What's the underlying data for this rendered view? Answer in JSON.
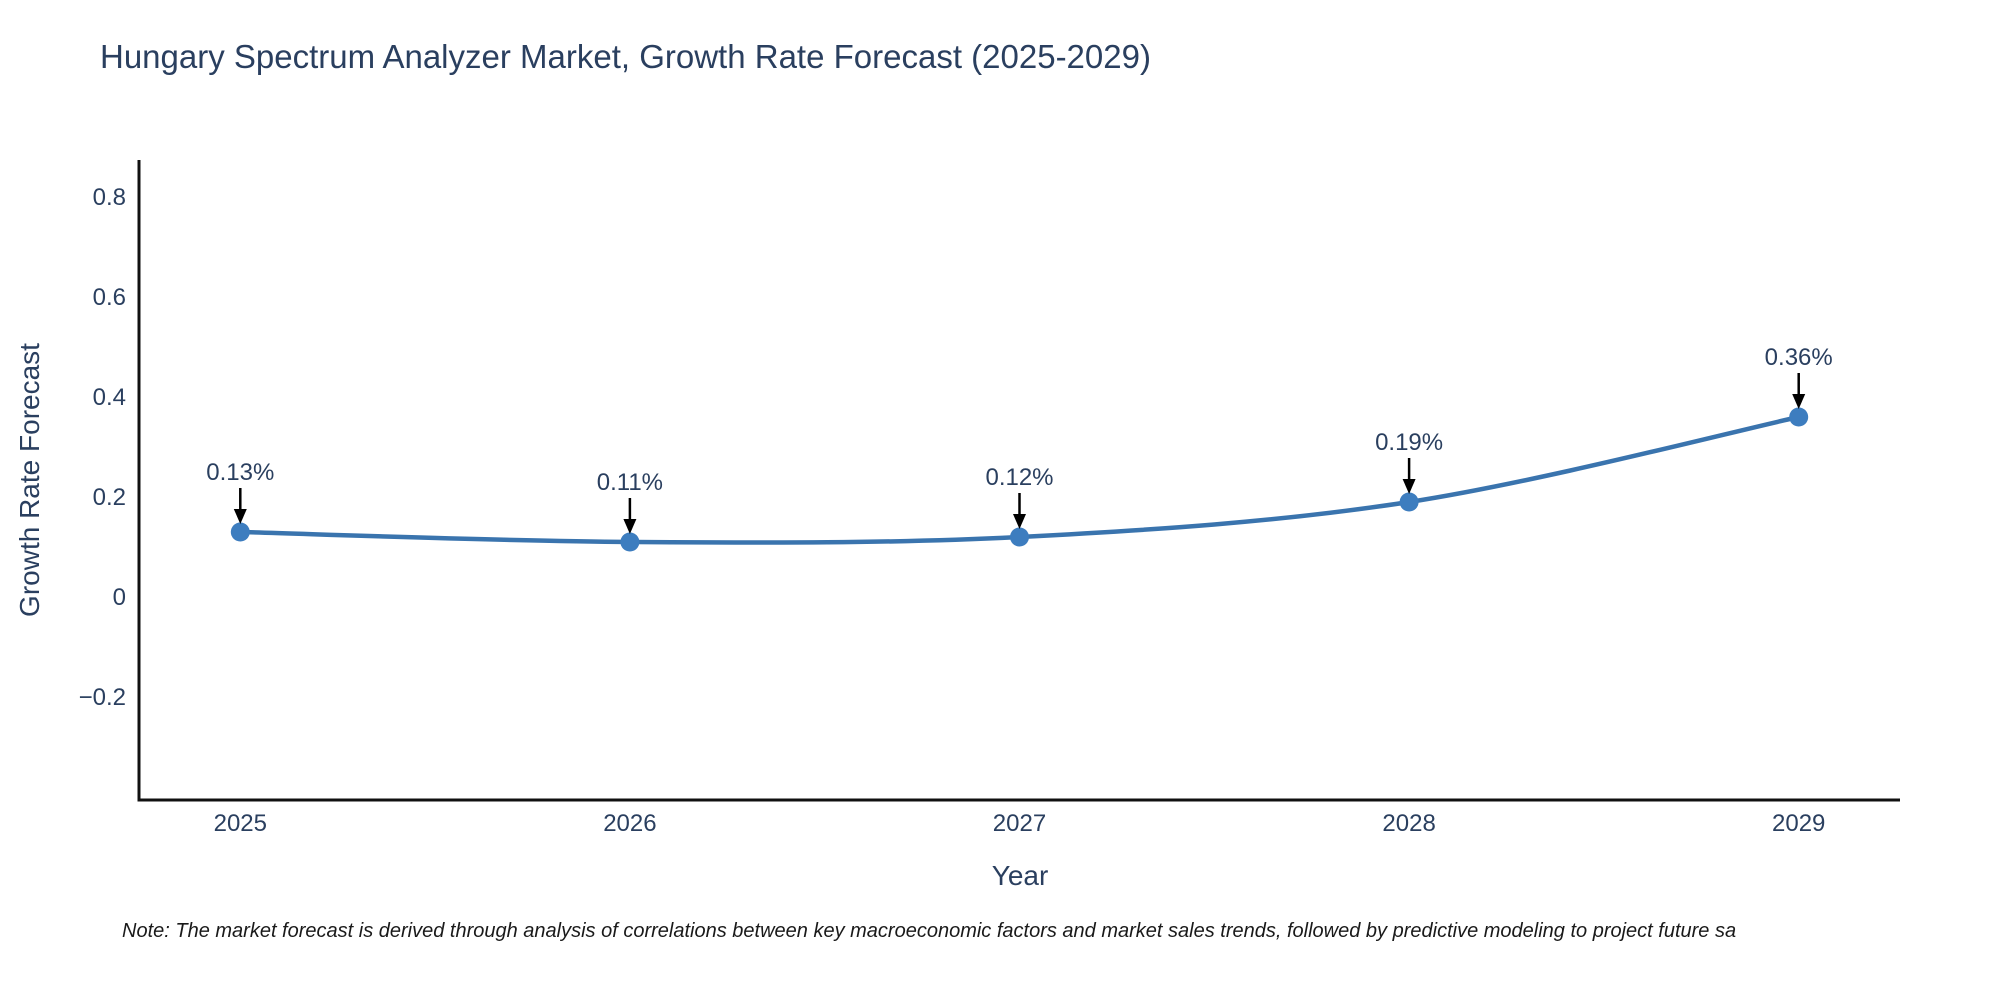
{
  "chart_data": {
    "type": "line",
    "title": "Hungary Spectrum Analyzer Market, Growth Rate Forecast (2025-2029)",
    "xlabel": "Year",
    "ylabel": "Growth Rate Forecast",
    "x": [
      2025,
      2026,
      2027,
      2028,
      2029
    ],
    "series": [
      {
        "name": "Growth Rate Forecast",
        "values": [
          0.13,
          0.11,
          0.12,
          0.19,
          0.36
        ],
        "point_labels": [
          "0.13%",
          "0.11%",
          "0.12%",
          "0.19%",
          "0.36%"
        ]
      }
    ],
    "xticks": [
      "2025",
      "2026",
      "2027",
      "2028",
      "2029"
    ],
    "yticks": [
      -0.2,
      0,
      0.2,
      0.4,
      0.6,
      0.8
    ],
    "yticklabels": [
      "−0.2",
      "0",
      "0.2",
      "0.4",
      "0.6",
      "0.8"
    ],
    "xlim": [
      2024.74,
      2029.26
    ],
    "ylim": [
      -0.406,
      0.874
    ],
    "grid": false,
    "legend": "none",
    "line_color": "#3a74ae",
    "marker_color": "#3d7dbf",
    "arrow_color": "#000000",
    "axis_color": "#111111",
    "text_color": "#2a3f5f"
  },
  "note": {
    "text": "Note: The market forecast is derived through analysis of correlations between key macroeconomic factors and market sales trends, followed by predictive modeling to project future sa"
  }
}
